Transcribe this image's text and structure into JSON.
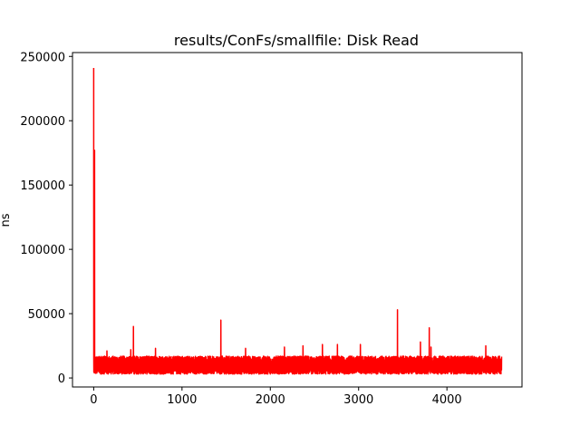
{
  "chart_data": {
    "type": "line",
    "title": "results/ConFs/smallfile: Disk Read",
    "xlabel": "",
    "ylabel": "ns",
    "xlim": [
      -240,
      4850
    ],
    "ylim": [
      -7000,
      253000
    ],
    "xticks": [
      0,
      1000,
      2000,
      3000,
      4000
    ],
    "yticks": [
      0,
      50000,
      100000,
      150000,
      200000,
      250000
    ],
    "grid": false,
    "color": "#ff0000",
    "n_points": 4620,
    "baseline_band": [
      3000,
      17000
    ],
    "series": [
      {
        "name": "",
        "spikes": [
          {
            "x": 0,
            "y": 241000
          },
          {
            "x": 5,
            "y": 30000
          },
          {
            "x": 10,
            "y": 177000
          },
          {
            "x": 15,
            "y": 12000
          },
          {
            "x": 150,
            "y": 21000
          },
          {
            "x": 420,
            "y": 22000
          },
          {
            "x": 450,
            "y": 40000
          },
          {
            "x": 700,
            "y": 23000
          },
          {
            "x": 1440,
            "y": 45000
          },
          {
            "x": 1720,
            "y": 23000
          },
          {
            "x": 2160,
            "y": 24000
          },
          {
            "x": 2370,
            "y": 25000
          },
          {
            "x": 2590,
            "y": 26000
          },
          {
            "x": 2760,
            "y": 26000
          },
          {
            "x": 3020,
            "y": 26000
          },
          {
            "x": 3440,
            "y": 53000
          },
          {
            "x": 3700,
            "y": 28000
          },
          {
            "x": 3800,
            "y": 39000
          },
          {
            "x": 3820,
            "y": 24000
          },
          {
            "x": 4440,
            "y": 25000
          }
        ]
      }
    ]
  }
}
